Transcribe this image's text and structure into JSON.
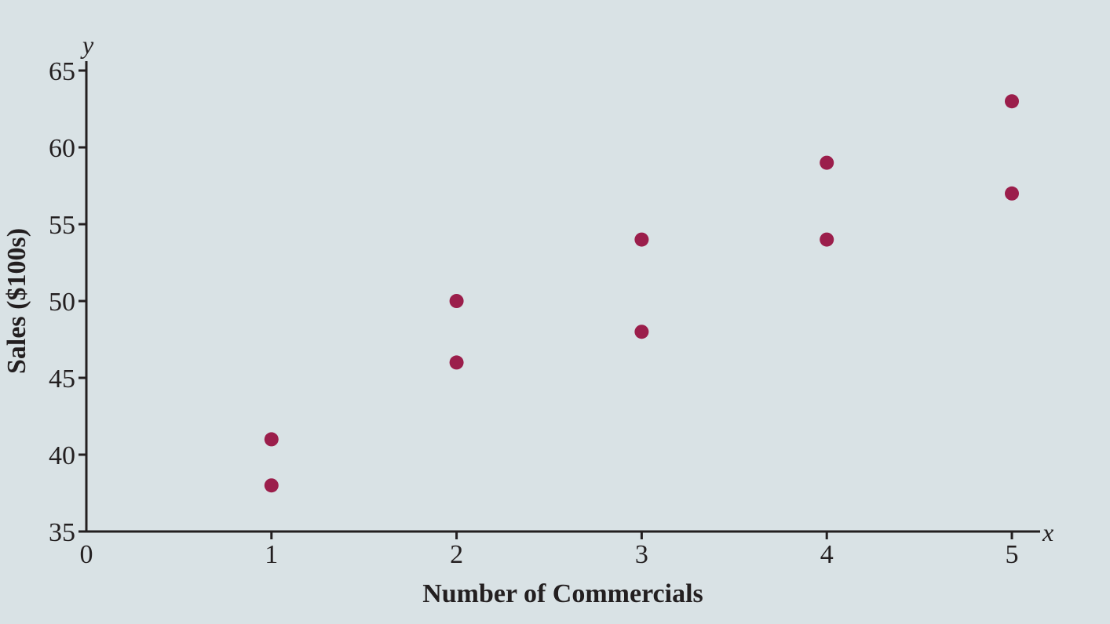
{
  "chart_data": {
    "type": "scatter",
    "title": "",
    "xlabel": "Number of Commercials",
    "ylabel": "Sales ($100s)",
    "x_axis_symbol": "x",
    "y_axis_symbol": "y",
    "xlim": [
      0,
      5
    ],
    "ylim": [
      35,
      65
    ],
    "x_ticks": [
      0,
      1,
      2,
      3,
      4,
      5
    ],
    "y_ticks": [
      35,
      40,
      45,
      50,
      55,
      60,
      65
    ],
    "grid": false,
    "point_color": "#9b1e4b",
    "series": [
      {
        "name": "Sales",
        "points": [
          {
            "x": 1,
            "y": 41
          },
          {
            "x": 1,
            "y": 38
          },
          {
            "x": 2,
            "y": 50
          },
          {
            "x": 2,
            "y": 46
          },
          {
            "x": 3,
            "y": 54
          },
          {
            "x": 3,
            "y": 48
          },
          {
            "x": 4,
            "y": 59
          },
          {
            "x": 4,
            "y": 54
          },
          {
            "x": 5,
            "y": 63
          },
          {
            "x": 5,
            "y": 57
          }
        ]
      }
    ]
  }
}
